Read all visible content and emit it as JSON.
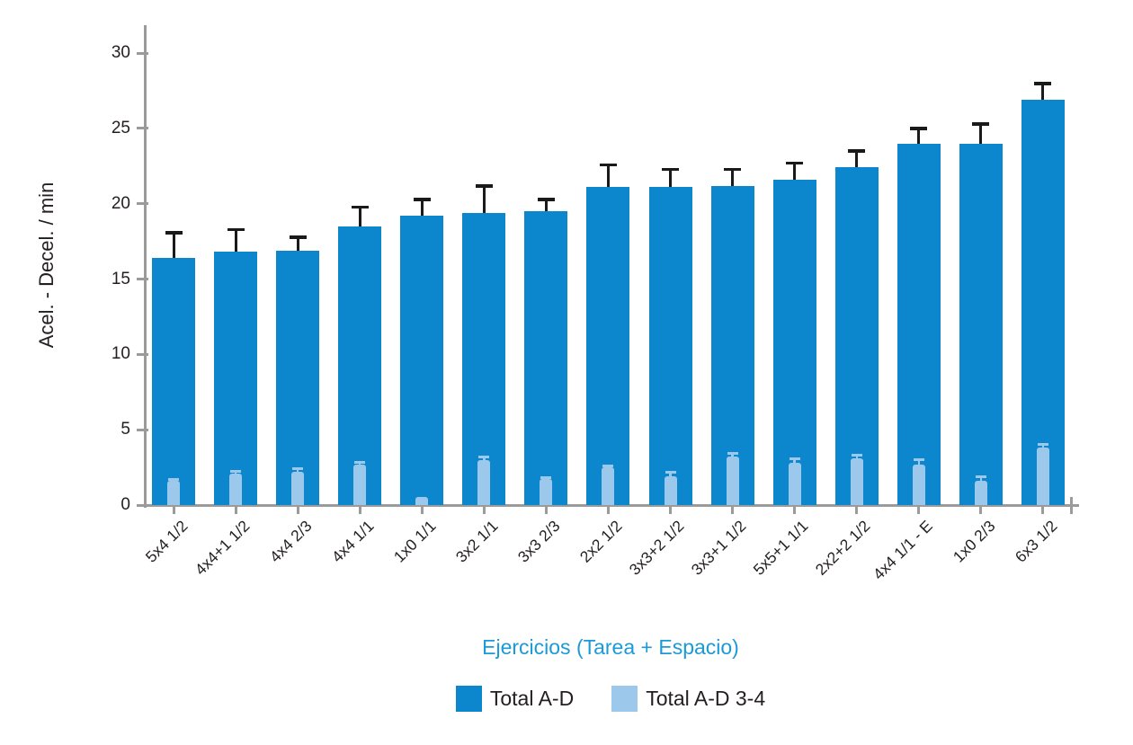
{
  "chart_data": {
    "type": "bar",
    "title": "",
    "xlabel": "Ejercicios (Tarea + Espacio)",
    "ylabel": "Acel. - Decel. / min",
    "ylim": [
      0,
      30
    ],
    "yticks": [
      0,
      5,
      10,
      15,
      20,
      25,
      30
    ],
    "grid": false,
    "legend_position": "bottom-center",
    "categories": [
      "5x4 1/2",
      "4x4+1 1/2",
      "4x4 2/3",
      "4x4 1/1",
      "1x0 1/1",
      "3x2 1/1",
      "3x3 2/3",
      "2x2 1/2",
      "3x3+2 1/2",
      "3x3+1 1/2",
      "5x5+1 1/1",
      "2x2+2 1/2",
      "4x4 1/1 - E",
      "1x0 2/3",
      "6x3 1/2"
    ],
    "series": [
      {
        "name": "Total A-D",
        "color": "#0C87CD",
        "values": [
          16.4,
          16.8,
          16.9,
          18.5,
          19.2,
          19.4,
          19.5,
          21.1,
          21.1,
          21.2,
          21.6,
          22.4,
          24.0,
          24.0,
          26.9
        ],
        "errors_plus": [
          1.7,
          1.5,
          0.9,
          1.3,
          1.1,
          1.8,
          0.8,
          1.5,
          1.2,
          1.1,
          1.1,
          1.1,
          1.0,
          1.3,
          1.1
        ]
      },
      {
        "name": "Total A-D 3-4",
        "color": "#9CC9EB",
        "values": [
          1.6,
          2.1,
          2.2,
          2.7,
          0.55,
          3.0,
          1.7,
          2.5,
          1.9,
          3.2,
          2.8,
          3.1,
          2.7,
          1.6,
          3.8
        ],
        "errors_plus": [
          0.1,
          0.15,
          0.2,
          0.15,
          0,
          0.2,
          0.1,
          0.1,
          0.25,
          0.2,
          0.3,
          0.2,
          0.3,
          0.3,
          0.2
        ]
      }
    ]
  },
  "colors": {
    "axis": "#9B9B9B",
    "error_dark": "#1A1A1A",
    "xlabel_title": "#1B9AD8",
    "text": "#231F20",
    "background": "#FFFFFF"
  }
}
